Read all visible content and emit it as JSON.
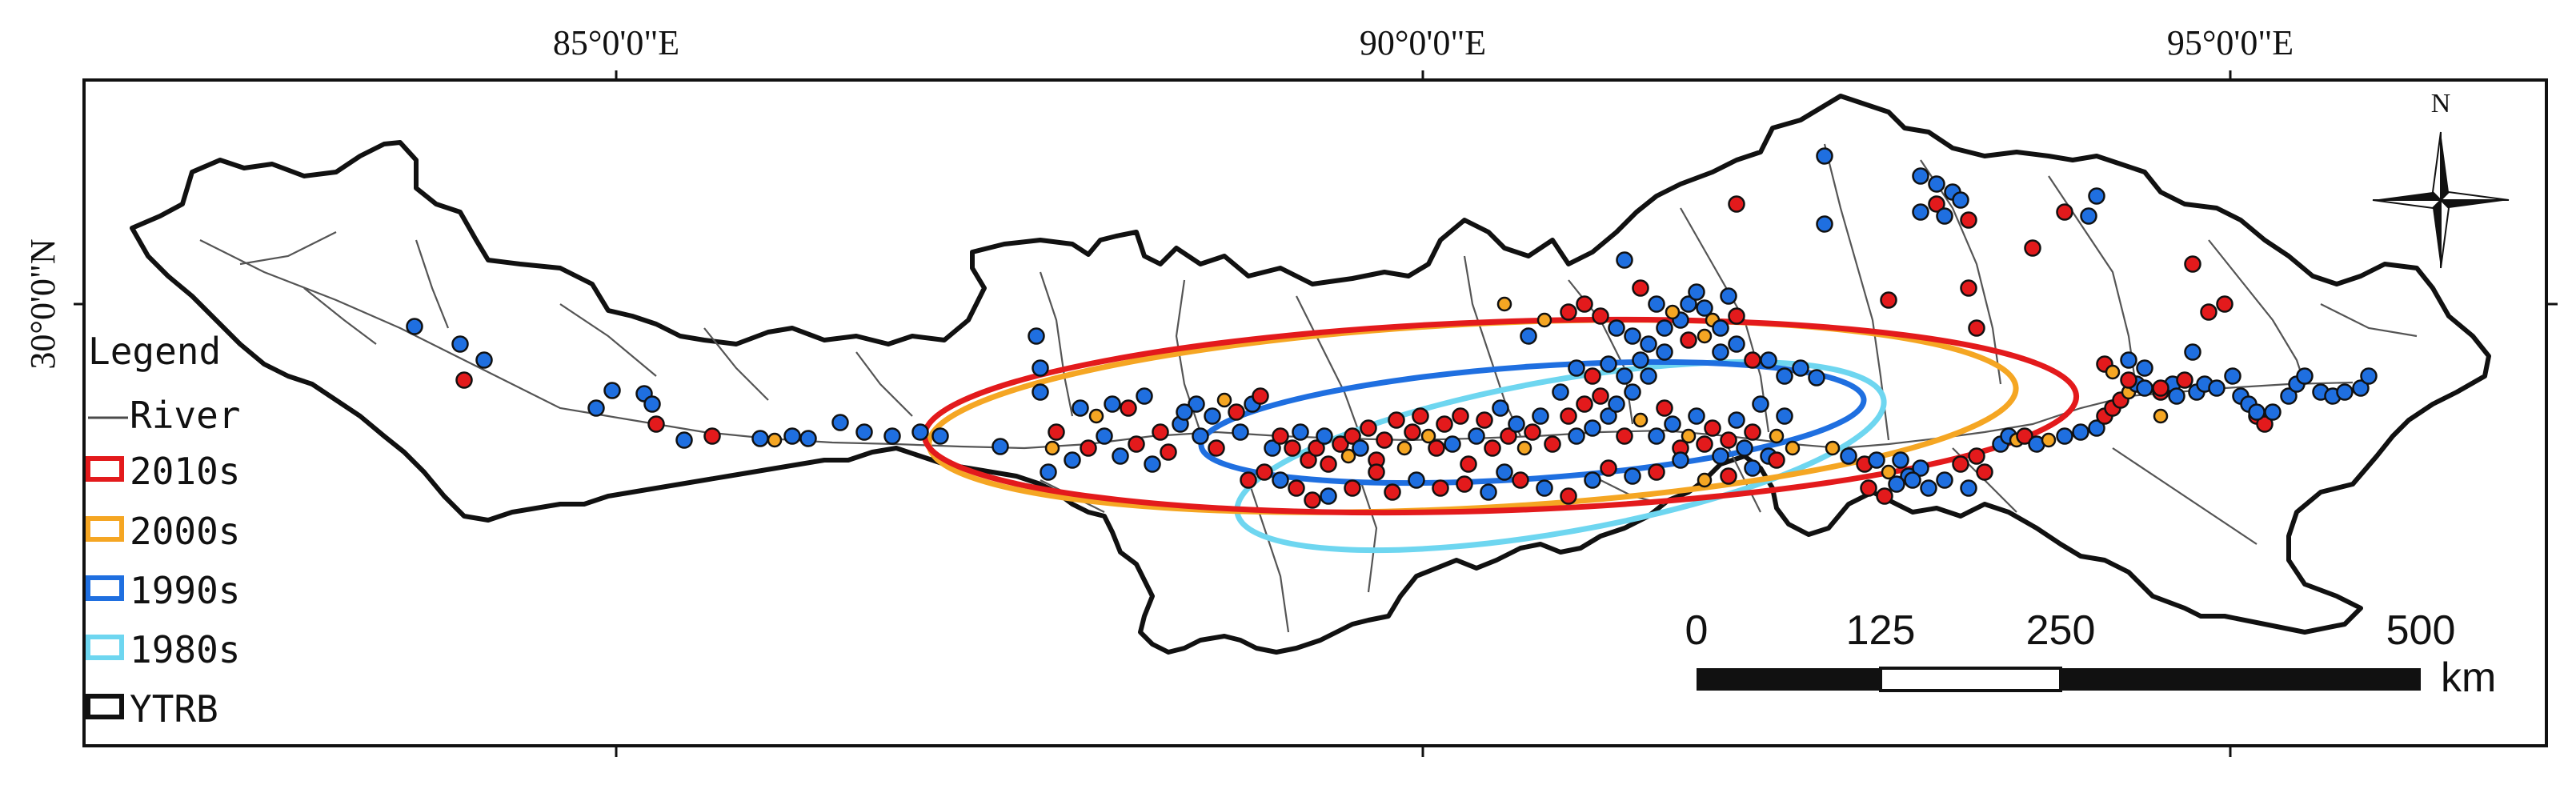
{
  "graticule": {
    "lon_labels": [
      "85°0'0\"E",
      "90°0'0\"E",
      "95°0'0\"E"
    ],
    "lat_labels": [
      "30°0'0\"N"
    ]
  },
  "legend": {
    "title": "Legend",
    "items": [
      {
        "label": "River",
        "symbol": "line",
        "color": "#4a4a4a"
      },
      {
        "label": "2010s",
        "symbol": "ellipse",
        "color": "#e31a1c"
      },
      {
        "label": "2000s",
        "symbol": "ellipse",
        "color": "#f5a623"
      },
      {
        "label": "1990s",
        "symbol": "ellipse",
        "color": "#1f6fe0"
      },
      {
        "label": "1980s",
        "symbol": "ellipse",
        "color": "#6ed6f0"
      },
      {
        "label": "YTRB",
        "symbol": "polygon",
        "color": "#111111"
      }
    ]
  },
  "scale_bar": {
    "ticks": [
      "0",
      "125",
      "250",
      "500"
    ],
    "unit": "km"
  },
  "north_arrow": {
    "label": "N"
  },
  "colors": {
    "red": "#e31a1c",
    "orange": "#f5a623",
    "blue": "#1f6fe0",
    "cyan": "#6ed6f0",
    "boundary": "#111111",
    "river": "#555555"
  }
}
